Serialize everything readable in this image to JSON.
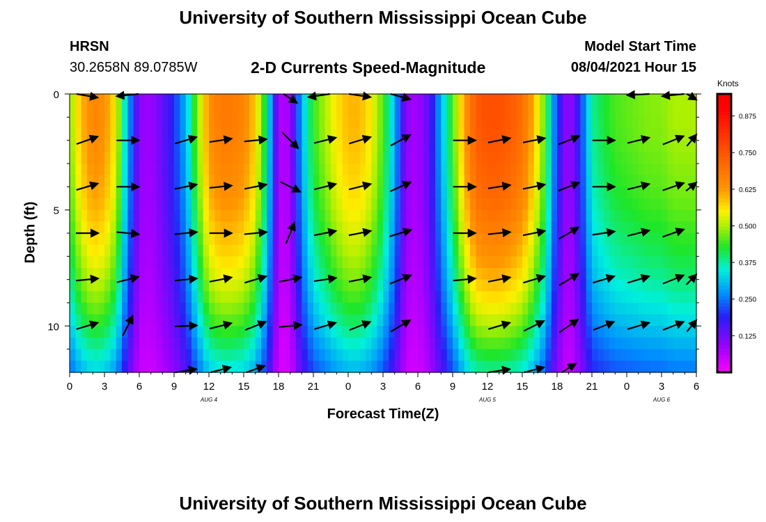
{
  "page": {
    "title": "University of Southern Mississippi Ocean Cube",
    "footer_title": "University of Southern Mississippi Ocean Cube",
    "station": "HRSN",
    "coordinates": "30.2658N  89.0785W",
    "subtitle": "2-D Currents Speed-Magnitude",
    "model_label": "Model Start Time",
    "model_time": "08/04/2021 Hour 15"
  },
  "chart_data": {
    "type": "heatmap",
    "title": "2-D Currents Speed-Magnitude",
    "xlabel": "Forecast Time(Z)",
    "ylabel": "Depth (ft)",
    "x_unit": "hours since Aug 4 00Z",
    "xlim": [
      0,
      54
    ],
    "ylim": [
      0,
      12
    ],
    "x_tick_values": [
      0,
      3,
      6,
      9,
      12,
      15,
      18,
      21,
      24,
      27,
      30,
      33,
      36,
      39,
      42,
      45,
      48,
      51,
      54
    ],
    "x_tick_labels": [
      "0",
      "3",
      "6",
      "9",
      "12",
      "15",
      "18",
      "21",
      "0",
      "3",
      "6",
      "9",
      "12",
      "15",
      "18",
      "21",
      "0",
      "3",
      "6"
    ],
    "y_tick_values": [
      0,
      5,
      10
    ],
    "y_tick_labels": [
      "0",
      "5",
      "10"
    ],
    "date_labels": [
      {
        "x": 12,
        "text": "AUG 4"
      },
      {
        "x": 36,
        "text": "AUG 5"
      },
      {
        "x": 51,
        "text": "AUG 6"
      }
    ],
    "colorbar": {
      "title": "Knots",
      "min": 0.0,
      "max": 0.95,
      "tick_values": [
        0.125,
        0.25,
        0.375,
        0.5,
        0.625,
        0.75,
        0.875
      ],
      "tick_labels": [
        "0.125",
        "0.250",
        "0.375",
        "0.500",
        "0.625",
        "0.750",
        "0.875"
      ]
    },
    "speed_profile_time": [
      0,
      1,
      2,
      3,
      4,
      5,
      6,
      7,
      8,
      9,
      10,
      11,
      12,
      13,
      14,
      15,
      16,
      17,
      18,
      19,
      20,
      21,
      22,
      23,
      24,
      25,
      26,
      27,
      28,
      29,
      30,
      31,
      32,
      33,
      34,
      35,
      36,
      37,
      38,
      39,
      40,
      41,
      42,
      43,
      44,
      45,
      46,
      47,
      48,
      49,
      50,
      51,
      52,
      53,
      54
    ],
    "speed_profile_knots": [
      0.48,
      0.6,
      0.66,
      0.64,
      0.55,
      0.3,
      0.1,
      0.09,
      0.14,
      0.2,
      0.3,
      0.48,
      0.64,
      0.68,
      0.68,
      0.66,
      0.58,
      0.38,
      0.07,
      0.08,
      0.3,
      0.44,
      0.5,
      0.56,
      0.6,
      0.6,
      0.55,
      0.45,
      0.3,
      0.1,
      0.08,
      0.15,
      0.3,
      0.45,
      0.62,
      0.74,
      0.76,
      0.76,
      0.74,
      0.7,
      0.6,
      0.45,
      0.2,
      0.08,
      0.2,
      0.38,
      0.42,
      0.45,
      0.46,
      0.47,
      0.48,
      0.48,
      0.5,
      0.5,
      0.5
    ],
    "depth_levels_ft": [
      0,
      1,
      2,
      3,
      4,
      5,
      6,
      7,
      8,
      9,
      10,
      11,
      12
    ],
    "depth_factor": [
      1.0,
      1.0,
      0.99,
      0.97,
      0.95,
      0.92,
      0.88,
      0.84,
      0.79,
      0.73,
      0.66,
      0.58,
      0.5
    ],
    "vectors": [
      {
        "t": 1.5,
        "d": 0,
        "dx": 1,
        "dy": 0.35
      },
      {
        "t": 5,
        "d": 0,
        "dx": -1,
        "dy": 0.2
      },
      {
        "t": 19,
        "d": 0,
        "dx": 0.6,
        "dy": 0.8
      },
      {
        "t": 21.5,
        "d": 0,
        "dx": -1,
        "dy": 0.3
      },
      {
        "t": 25,
        "d": 0,
        "dx": 1,
        "dy": 0.3
      },
      {
        "t": 28.5,
        "d": 0,
        "dx": 1,
        "dy": 0.55
      },
      {
        "t": 49,
        "d": 0,
        "dx": -1,
        "dy": 0.1
      },
      {
        "t": 52,
        "d": 0,
        "dx": -1,
        "dy": 0.2
      },
      {
        "t": 54,
        "d": 0,
        "dx": 1,
        "dy": 0.6
      },
      {
        "t": 1.5,
        "d": 2,
        "dx": 1,
        "dy": -0.35
      },
      {
        "t": 5,
        "d": 2,
        "dx": 1,
        "dy": 0
      },
      {
        "t": 10,
        "d": 2,
        "dx": 1,
        "dy": -0.3
      },
      {
        "t": 13,
        "d": 2,
        "dx": 1,
        "dy": -0.15
      },
      {
        "t": 16,
        "d": 2,
        "dx": 1,
        "dy": -0.1
      },
      {
        "t": 19,
        "d": 2,
        "dx": 0.8,
        "dy": 0.8
      },
      {
        "t": 22,
        "d": 2,
        "dx": 1,
        "dy": -0.25
      },
      {
        "t": 25,
        "d": 2,
        "dx": 1,
        "dy": -0.3
      },
      {
        "t": 28.5,
        "d": 2,
        "dx": 1,
        "dy": -0.55
      },
      {
        "t": 34,
        "d": 2,
        "dx": 1,
        "dy": 0
      },
      {
        "t": 37,
        "d": 2,
        "dx": 1,
        "dy": -0.2
      },
      {
        "t": 40,
        "d": 2,
        "dx": 1,
        "dy": -0.2
      },
      {
        "t": 43,
        "d": 2,
        "dx": 1,
        "dy": -0.4
      },
      {
        "t": 46,
        "d": 2,
        "dx": 1,
        "dy": 0
      },
      {
        "t": 49,
        "d": 2,
        "dx": 1,
        "dy": -0.25
      },
      {
        "t": 52,
        "d": 2,
        "dx": 1,
        "dy": -0.4
      },
      {
        "t": 54,
        "d": 2,
        "dx": 1,
        "dy": -0.6
      },
      {
        "t": 1.5,
        "d": 4,
        "dx": 1,
        "dy": -0.3
      },
      {
        "t": 5,
        "d": 4,
        "dx": 1,
        "dy": 0
      },
      {
        "t": 10,
        "d": 4,
        "dx": 1,
        "dy": -0.2
      },
      {
        "t": 13,
        "d": 4,
        "dx": 1,
        "dy": -0.1
      },
      {
        "t": 16,
        "d": 4,
        "dx": 1,
        "dy": -0.2
      },
      {
        "t": 19,
        "d": 4,
        "dx": 1,
        "dy": 0.5
      },
      {
        "t": 22,
        "d": 4,
        "dx": 1,
        "dy": -0.25
      },
      {
        "t": 25,
        "d": 4,
        "dx": 1,
        "dy": -0.25
      },
      {
        "t": 28.5,
        "d": 4,
        "dx": 1,
        "dy": -0.45
      },
      {
        "t": 34,
        "d": 4,
        "dx": 1,
        "dy": 0
      },
      {
        "t": 37,
        "d": 4,
        "dx": 1,
        "dy": -0.15
      },
      {
        "t": 40,
        "d": 4,
        "dx": 1,
        "dy": -0.2
      },
      {
        "t": 43,
        "d": 4,
        "dx": 1,
        "dy": -0.4
      },
      {
        "t": 46,
        "d": 4,
        "dx": 1,
        "dy": 0
      },
      {
        "t": 49,
        "d": 4,
        "dx": 1,
        "dy": -0.25
      },
      {
        "t": 52,
        "d": 4,
        "dx": 1,
        "dy": -0.35
      },
      {
        "t": 54,
        "d": 4,
        "dx": 1,
        "dy": -0.4
      },
      {
        "t": 1.5,
        "d": 6,
        "dx": 1,
        "dy": 0
      },
      {
        "t": 5,
        "d": 6,
        "dx": 1,
        "dy": 0.1
      },
      {
        "t": 10,
        "d": 6,
        "dx": 1,
        "dy": -0.1
      },
      {
        "t": 13,
        "d": 6,
        "dx": 1,
        "dy": 0
      },
      {
        "t": 16,
        "d": 6,
        "dx": 1,
        "dy": -0.1
      },
      {
        "t": 19,
        "d": 6,
        "dx": 0.4,
        "dy": -1
      },
      {
        "t": 22,
        "d": 6,
        "dx": 1,
        "dy": -0.2
      },
      {
        "t": 25,
        "d": 6,
        "dx": 1,
        "dy": -0.2
      },
      {
        "t": 28.5,
        "d": 6,
        "dx": 1,
        "dy": -0.3
      },
      {
        "t": 34,
        "d": 6,
        "dx": 1,
        "dy": 0
      },
      {
        "t": 37,
        "d": 6,
        "dx": 1,
        "dy": -0.1
      },
      {
        "t": 40,
        "d": 6,
        "dx": 1,
        "dy": -0.2
      },
      {
        "t": 43,
        "d": 6,
        "dx": 1,
        "dy": -0.6
      },
      {
        "t": 46,
        "d": 6,
        "dx": 1,
        "dy": -0.15
      },
      {
        "t": 49,
        "d": 6,
        "dx": 1,
        "dy": -0.25
      },
      {
        "t": 52,
        "d": 6,
        "dx": 1,
        "dy": -0.35
      },
      {
        "t": 1.5,
        "d": 8,
        "dx": 1,
        "dy": -0.1
      },
      {
        "t": 5,
        "d": 8,
        "dx": 1,
        "dy": -0.25
      },
      {
        "t": 10,
        "d": 8,
        "dx": 1,
        "dy": -0.1
      },
      {
        "t": 13,
        "d": 8,
        "dx": 1,
        "dy": -0.2
      },
      {
        "t": 16,
        "d": 8,
        "dx": 1,
        "dy": -0.3
      },
      {
        "t": 19,
        "d": 8,
        "dx": 1,
        "dy": -0.2
      },
      {
        "t": 22,
        "d": 8,
        "dx": 1,
        "dy": -0.15
      },
      {
        "t": 25,
        "d": 8,
        "dx": 1,
        "dy": -0.2
      },
      {
        "t": 28.5,
        "d": 8,
        "dx": 1,
        "dy": -0.4
      },
      {
        "t": 34,
        "d": 8,
        "dx": 1,
        "dy": -0.1
      },
      {
        "t": 37,
        "d": 8,
        "dx": 1,
        "dy": -0.2
      },
      {
        "t": 40,
        "d": 8,
        "dx": 1,
        "dy": -0.3
      },
      {
        "t": 43,
        "d": 8,
        "dx": 1,
        "dy": -0.6
      },
      {
        "t": 46,
        "d": 8,
        "dx": 1,
        "dy": -0.3
      },
      {
        "t": 49,
        "d": 8,
        "dx": 1,
        "dy": -0.3
      },
      {
        "t": 52,
        "d": 8,
        "dx": 1,
        "dy": -0.4
      },
      {
        "t": 54,
        "d": 8,
        "dx": 1,
        "dy": -0.5
      },
      {
        "t": 1.5,
        "d": 10,
        "dx": 1,
        "dy": -0.3
      },
      {
        "t": 5,
        "d": 10,
        "dx": 0.5,
        "dy": -1
      },
      {
        "t": 10,
        "d": 10,
        "dx": 1,
        "dy": -0.05
      },
      {
        "t": 13,
        "d": 10,
        "dx": 1,
        "dy": -0.25
      },
      {
        "t": 16,
        "d": 10,
        "dx": 1,
        "dy": -0.4
      },
      {
        "t": 19,
        "d": 10,
        "dx": 1,
        "dy": -0.1
      },
      {
        "t": 22,
        "d": 10,
        "dx": 1,
        "dy": -0.3
      },
      {
        "t": 25,
        "d": 10,
        "dx": 1,
        "dy": -0.4
      },
      {
        "t": 28.5,
        "d": 10,
        "dx": 1,
        "dy": -0.6
      },
      {
        "t": 37,
        "d": 10,
        "dx": 1,
        "dy": -0.3
      },
      {
        "t": 40,
        "d": 10,
        "dx": 1,
        "dy": -0.5
      },
      {
        "t": 43,
        "d": 10,
        "dx": 1,
        "dy": -0.7
      },
      {
        "t": 46,
        "d": 10,
        "dx": 1,
        "dy": -0.4
      },
      {
        "t": 49,
        "d": 10,
        "dx": 1,
        "dy": -0.3
      },
      {
        "t": 52,
        "d": 10,
        "dx": 1,
        "dy": -0.4
      },
      {
        "t": 54,
        "d": 10,
        "dx": 1,
        "dy": -0.6
      },
      {
        "t": 10,
        "d": 12,
        "dx": 1,
        "dy": -0.3
      },
      {
        "t": 13,
        "d": 12,
        "dx": 1,
        "dy": -0.5
      },
      {
        "t": 16,
        "d": 12,
        "dx": 1,
        "dy": -0.7
      },
      {
        "t": 37,
        "d": 12,
        "dx": 1,
        "dy": -0.3
      },
      {
        "t": 40,
        "d": 12,
        "dx": 1,
        "dy": -0.5
      },
      {
        "t": 43,
        "d": 12,
        "dx": 0.8,
        "dy": -1
      }
    ]
  }
}
